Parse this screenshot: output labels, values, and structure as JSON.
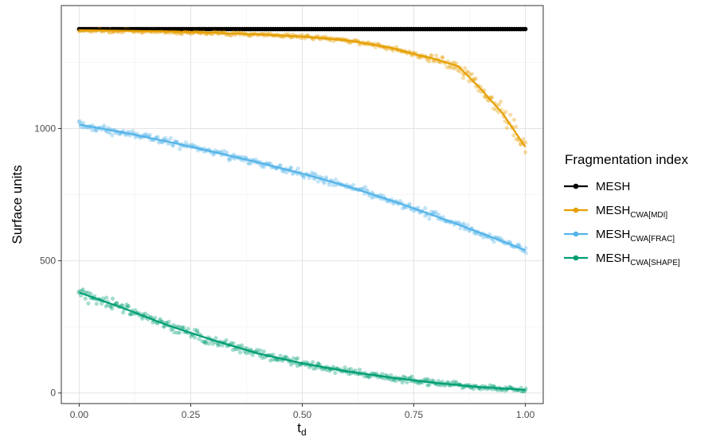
{
  "chart_data": {
    "type": "scatter",
    "title": "",
    "xlabel": "t",
    "xlabel_sub": "d",
    "ylabel": "Surface units",
    "xlim": [
      -0.04,
      1.04
    ],
    "ylim": [
      -40,
      1465
    ],
    "x_ticks": [
      0,
      0.25,
      0.5,
      0.75,
      1
    ],
    "x_tick_labels": [
      "0.00",
      "0.25",
      "0.50",
      "0.75",
      "1.00"
    ],
    "y_ticks": [
      0,
      500,
      1000
    ],
    "y_tick_labels": [
      "0",
      "500",
      "1000"
    ],
    "grid": true,
    "legend": {
      "title": "Fragmentation index",
      "placement": "right"
    },
    "series": [
      {
        "name": "MESH",
        "name_sub": "",
        "color": "#000000",
        "x": [
          0,
          0.1,
          0.2,
          0.3,
          0.4,
          0.5,
          0.6,
          0.7,
          0.8,
          0.9,
          1.0
        ],
        "y": [
          1376,
          1376,
          1376,
          1376,
          1376,
          1376,
          1376,
          1376,
          1376,
          1376,
          1376
        ]
      },
      {
        "name": "MESH",
        "name_sub": "CWA[MDI]",
        "color": "#E69F00",
        "x": [
          0,
          0.1,
          0.2,
          0.3,
          0.4,
          0.5,
          0.6,
          0.7,
          0.75,
          0.8,
          0.85,
          0.9,
          0.95,
          1.0
        ],
        "y": [
          1372,
          1370,
          1367,
          1362,
          1356,
          1348,
          1334,
          1305,
          1282,
          1262,
          1235,
          1150,
          1055,
          930
        ]
      },
      {
        "name": "MESH",
        "name_sub": "CWA[FRAC]",
        "color": "#56B4E9",
        "x": [
          0,
          0.1,
          0.2,
          0.3,
          0.4,
          0.5,
          0.6,
          0.7,
          0.8,
          0.9,
          1.0
        ],
        "y": [
          1015,
          985,
          950,
          912,
          872,
          830,
          782,
          728,
          668,
          605,
          540
        ]
      },
      {
        "name": "MESH",
        "name_sub": "CWA[SHAPE]",
        "color": "#009E73",
        "x": [
          0,
          0.1,
          0.2,
          0.3,
          0.4,
          0.5,
          0.6,
          0.7,
          0.8,
          0.9,
          1.0
        ],
        "y": [
          380,
          320,
          255,
          200,
          150,
          112,
          82,
          58,
          38,
          22,
          12
        ]
      }
    ]
  }
}
